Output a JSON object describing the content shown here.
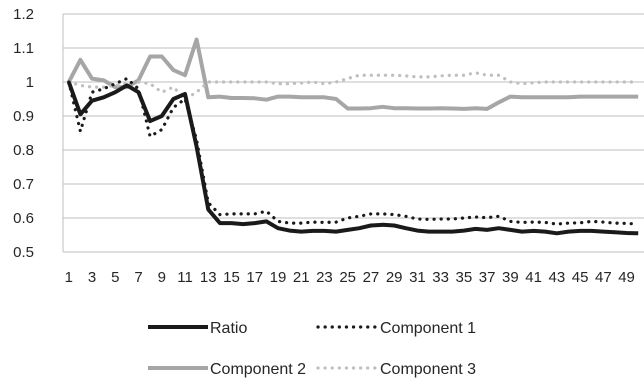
{
  "chart_data": {
    "type": "line",
    "xlabel": "",
    "ylabel": "",
    "ylim": [
      0.5,
      1.2
    ],
    "yticks": [
      "0.5",
      "0.6",
      "0.7",
      "0.8",
      "0.9",
      "1",
      "1.1",
      "1.2"
    ],
    "x": [
      1,
      2,
      3,
      4,
      5,
      6,
      7,
      8,
      9,
      10,
      11,
      12,
      13,
      14,
      15,
      16,
      17,
      18,
      19,
      20,
      21,
      22,
      23,
      24,
      25,
      26,
      27,
      28,
      29,
      30,
      31,
      32,
      33,
      34,
      35,
      36,
      37,
      38,
      39,
      40,
      41,
      42,
      43,
      44,
      45,
      46,
      47,
      48,
      49,
      50
    ],
    "xtick_labels": [
      "1",
      "3",
      "5",
      "7",
      "9",
      "11",
      "13",
      "15",
      "17",
      "19",
      "21",
      "23",
      "25",
      "27",
      "29",
      "31",
      "33",
      "35",
      "37",
      "39",
      "41",
      "43",
      "45",
      "47",
      "49"
    ],
    "grid": "horizontal",
    "legend_position": "bottom",
    "series": [
      {
        "name": "Ratio",
        "color": "#1a1a1a",
        "style": "solid-thick",
        "values": [
          1.0,
          0.905,
          0.945,
          0.955,
          0.97,
          0.99,
          0.97,
          0.885,
          0.9,
          0.95,
          0.965,
          0.81,
          0.625,
          0.585,
          0.585,
          0.582,
          0.585,
          0.59,
          0.57,
          0.563,
          0.56,
          0.562,
          0.562,
          0.56,
          0.565,
          0.57,
          0.578,
          0.58,
          0.578,
          0.57,
          0.563,
          0.56,
          0.56,
          0.56,
          0.563,
          0.568,
          0.565,
          0.57,
          0.565,
          0.56,
          0.562,
          0.56,
          0.555,
          0.56,
          0.562,
          0.562,
          0.56,
          0.558,
          0.556,
          0.555
        ]
      },
      {
        "name": "Component 1",
        "color": "#1a1a1a",
        "style": "dotted",
        "values": [
          1.0,
          0.855,
          0.97,
          0.98,
          0.995,
          1.01,
          0.98,
          0.84,
          0.86,
          0.925,
          0.95,
          0.83,
          0.645,
          0.61,
          0.612,
          0.612,
          0.612,
          0.62,
          0.59,
          0.585,
          0.585,
          0.588,
          0.587,
          0.588,
          0.6,
          0.605,
          0.612,
          0.612,
          0.61,
          0.605,
          0.597,
          0.596,
          0.597,
          0.597,
          0.6,
          0.603,
          0.601,
          0.605,
          0.59,
          0.587,
          0.588,
          0.587,
          0.582,
          0.585,
          0.586,
          0.59,
          0.588,
          0.585,
          0.584,
          0.582
        ]
      },
      {
        "name": "Component 2",
        "color": "#a6a6a6",
        "style": "solid-thick",
        "values": [
          1.0,
          1.065,
          1.01,
          1.005,
          0.985,
          0.985,
          1.005,
          1.075,
          1.075,
          1.035,
          1.02,
          1.125,
          0.955,
          0.957,
          0.953,
          0.953,
          0.952,
          0.948,
          0.957,
          0.957,
          0.955,
          0.955,
          0.955,
          0.95,
          0.922,
          0.922,
          0.923,
          0.927,
          0.923,
          0.923,
          0.922,
          0.922,
          0.923,
          0.922,
          0.921,
          0.923,
          0.921,
          0.94,
          0.957,
          0.955,
          0.955,
          0.955,
          0.955,
          0.955,
          0.957,
          0.957,
          0.957,
          0.957,
          0.957,
          0.957
        ]
      },
      {
        "name": "Component 3",
        "color": "#bfbfbf",
        "style": "dotted",
        "values": [
          1.0,
          0.99,
          0.985,
          0.985,
          0.99,
          0.995,
          1.0,
          0.995,
          0.97,
          0.985,
          0.95,
          0.97,
          1.0,
          1.0,
          1.0,
          1.0,
          1.0,
          1.0,
          0.995,
          0.995,
          0.997,
          1.0,
          0.995,
          1.0,
          1.01,
          1.02,
          1.02,
          1.02,
          1.02,
          1.018,
          1.015,
          1.015,
          1.018,
          1.02,
          1.02,
          1.027,
          1.02,
          1.02,
          1.0,
          0.995,
          0.998,
          1.0,
          1.0,
          1.0,
          1.0,
          1.0,
          1.0,
          1.0,
          1.0,
          1.0
        ]
      }
    ]
  }
}
